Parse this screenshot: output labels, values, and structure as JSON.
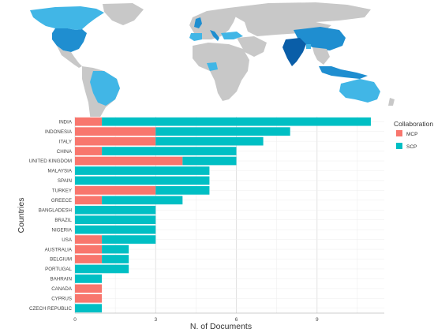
{
  "chart_data": [
    {
      "type": "map",
      "description_values": {
        "legend": "",
        "color_scale": [
          "#e3f6fc",
          "#8fd6f0",
          "#41b6e6",
          "#1f8ed0",
          "#0a5ea8"
        ]
      }
    },
    {
      "type": "bar",
      "orientation": "horizontal",
      "stacked": true,
      "xlabel": "N. of Documents",
      "ylabel": "Countries",
      "xlim": [
        0,
        11.5
      ],
      "xticks": [
        0,
        3,
        6,
        9
      ],
      "grid": true,
      "legend_title": "Collaboration",
      "legend_position": "right",
      "categories": [
        "INDIA",
        "INDONESIA",
        "ITALY",
        "CHINA",
        "UNITED KINGDOM",
        "MALAYSIA",
        "SPAIN",
        "TURKEY",
        "GREECE",
        "BANGLADESH",
        "BRAZIL",
        "NIGERIA",
        "USA",
        "AUSTRALIA",
        "BELGIUM",
        "PORTUGAL",
        "BAHRAIN",
        "CANADA",
        "CYPRUS",
        "CZECH REPUBLIC"
      ],
      "series": [
        {
          "name": "MCP",
          "color": "#f8766d",
          "values": [
            1,
            3,
            3,
            1,
            4,
            0,
            0,
            3,
            1,
            0,
            0,
            0,
            1,
            1,
            1,
            0,
            0,
            1,
            1,
            0
          ]
        },
        {
          "name": "SCP",
          "color": "#00bfc4",
          "values": [
            10,
            5,
            4,
            5,
            2,
            5,
            5,
            2,
            3,
            3,
            3,
            3,
            2,
            1,
            1,
            2,
            1,
            0,
            0,
            1
          ]
        }
      ]
    }
  ]
}
